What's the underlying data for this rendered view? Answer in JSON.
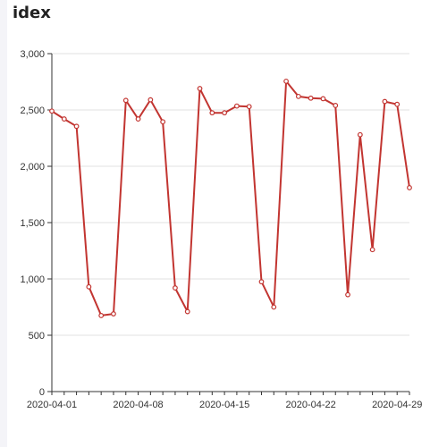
{
  "panel": {
    "title": "idex"
  },
  "chart_data": {
    "type": "line",
    "title": "idex",
    "xlabel": "",
    "ylabel": "",
    "x": [
      "2020-04-01",
      "2020-04-02",
      "2020-04-03",
      "2020-04-04",
      "2020-04-05",
      "2020-04-06",
      "2020-04-07",
      "2020-04-08",
      "2020-04-09",
      "2020-04-10",
      "2020-04-11",
      "2020-04-12",
      "2020-04-13",
      "2020-04-14",
      "2020-04-15",
      "2020-04-16",
      "2020-04-17",
      "2020-04-18",
      "2020-04-19",
      "2020-04-20",
      "2020-04-21",
      "2020-04-22",
      "2020-04-23",
      "2020-04-24",
      "2020-04-25",
      "2020-04-26",
      "2020-04-27",
      "2020-04-28",
      "2020-04-29",
      "2020-04-30"
    ],
    "series": [
      {
        "values": [
          2490,
          2420,
          2355,
          930,
          675,
          690,
          2585,
          2420,
          2590,
          2395,
          920,
          710,
          2690,
          2475,
          2475,
          2535,
          2530,
          975,
          750,
          2755,
          2620,
          2605,
          2600,
          2540,
          860,
          2280,
          1260,
          2575,
          2550,
          1810
        ]
      }
    ],
    "ylim": [
      0,
      3000
    ],
    "yticks": [
      0,
      500,
      1000,
      1500,
      2000,
      2500,
      3000
    ],
    "ytick_labels": [
      "0",
      "500",
      "1,000",
      "1,500",
      "2,000",
      "2,500",
      "3,000"
    ],
    "xtick_labels": [
      "2020-04-01",
      "2020-04-08",
      "2020-04-15",
      "2020-04-22",
      "2020-04-29"
    ],
    "grid": true,
    "line_color": "#c23531",
    "marker_fill": "#ffffff"
  }
}
